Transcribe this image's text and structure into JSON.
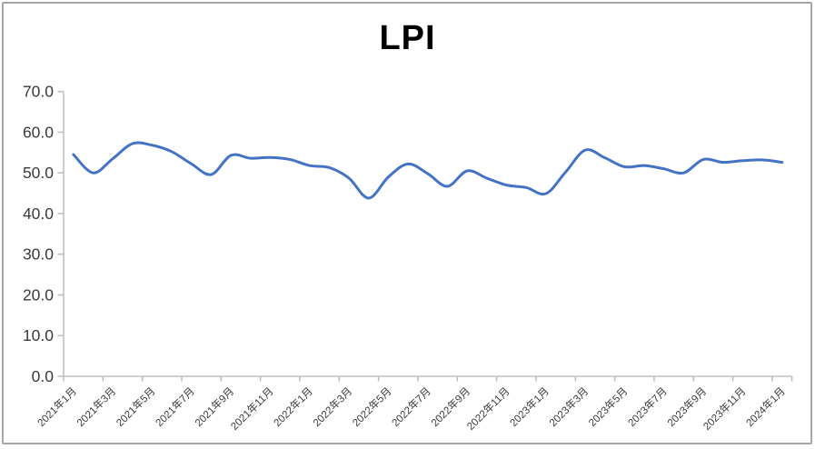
{
  "window": {
    "background": "#ffffff",
    "frame_color": "#a6a6a6"
  },
  "chart_data": {
    "type": "line",
    "title": "LPI",
    "smooth": true,
    "grid": "off",
    "legend": "none",
    "ylim": [
      0,
      70
    ],
    "y_tick_step": 10,
    "y_tick_labels": [
      "0.0",
      "10.0",
      "20.0",
      "30.0",
      "40.0",
      "50.0",
      "60.0",
      "70.0"
    ],
    "x_tick_label_every": 2,
    "x_tick_labels": [
      "2021年1月",
      "2021年3月",
      "2021年5月",
      "2021年7月",
      "2021年9月",
      "2021年11月",
      "2022年1月",
      "2022年3月",
      "2022年5月",
      "2022年7月",
      "2022年9月",
      "2022年11月",
      "2023年1月",
      "2023年3月",
      "2023年5月",
      "2023年7月",
      "2023年9月",
      "2023年11月",
      "2024年1月"
    ],
    "categories": [
      "2021年1月",
      "2021年2月",
      "2021年3月",
      "2021年4月",
      "2021年5月",
      "2021年6月",
      "2021年7月",
      "2021年8月",
      "2021年9月",
      "2021年10月",
      "2021年11月",
      "2021年12月",
      "2022年1月",
      "2022年2月",
      "2022年3月",
      "2022年4月",
      "2022年5月",
      "2022年6月",
      "2022年7月",
      "2022年8月",
      "2022年9月",
      "2022年10月",
      "2022年11月",
      "2022年12月",
      "2023年1月",
      "2023年2月",
      "2023年3月",
      "2023年4月",
      "2023年5月",
      "2023年6月",
      "2023年7月",
      "2023年8月",
      "2023年9月",
      "2023年10月",
      "2023年11月",
      "2023年12月",
      "2024年1月"
    ],
    "series": [
      {
        "name": "LPI",
        "color": "#4472C4",
        "values": [
          54.5,
          50.0,
          53.5,
          57.2,
          56.8,
          55.2,
          52.2,
          49.6,
          54.3,
          53.6,
          53.8,
          53.3,
          51.8,
          51.3,
          48.7,
          43.8,
          49.0,
          52.2,
          49.8,
          46.7,
          50.5,
          48.7,
          47.0,
          46.4,
          44.9,
          50.2,
          55.6,
          53.7,
          51.5,
          51.8,
          51.0,
          50.0,
          53.3,
          52.6,
          53.0,
          53.2,
          52.6
        ]
      }
    ],
    "axis_color": "#BFBFBF",
    "label_color": "#3a3a3a",
    "title_color": "#000000"
  }
}
